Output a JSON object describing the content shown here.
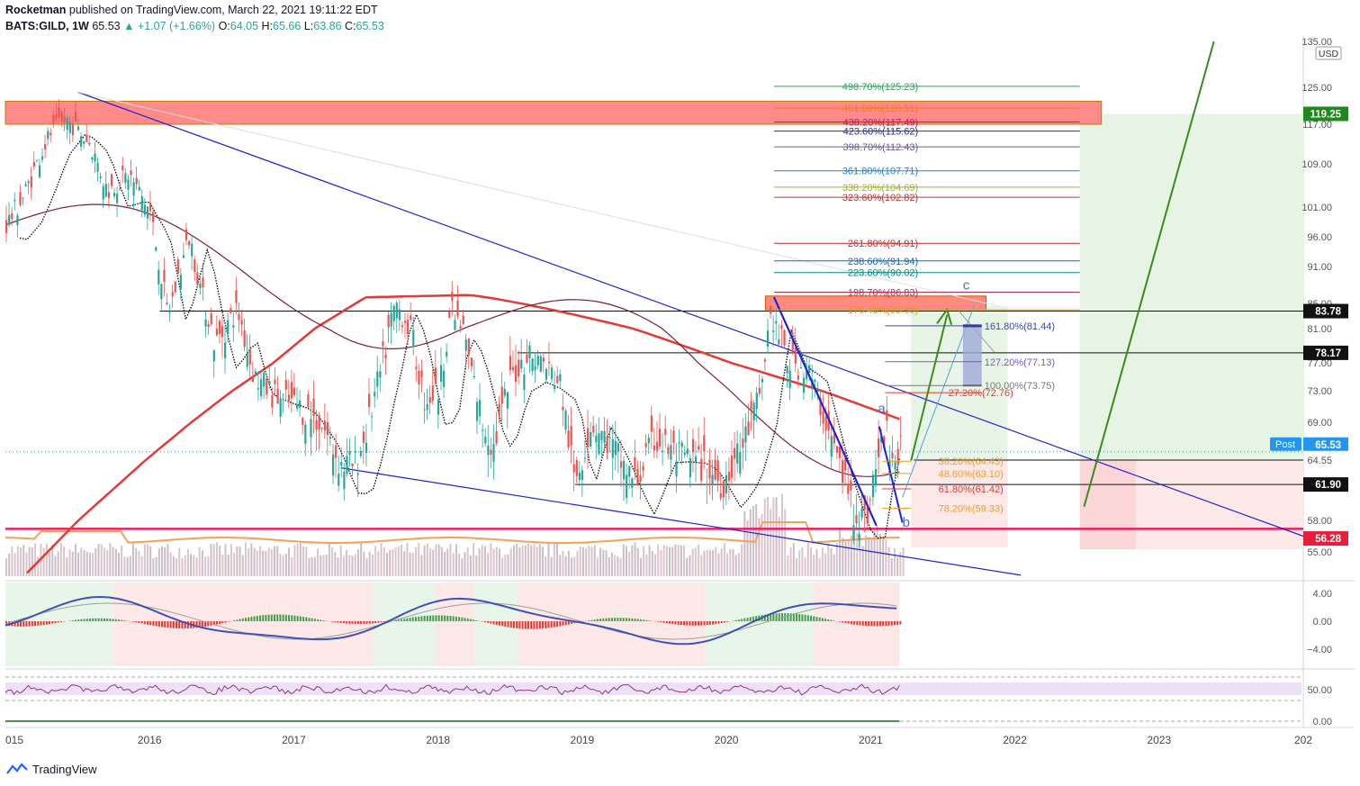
{
  "header": {
    "author": "Rocketman",
    "published_text": "published on TradingView.com, March 22, 2021 19:11:22 EDT",
    "symbol": "BATS:GILD, 1W",
    "last": "65.53",
    "change": "▲ +1.07 (+1.66%)",
    "o_label": "O:",
    "o_val": "64.05",
    "h_label": "H:",
    "h_val": "65.66",
    "l_label": "L:",
    "l_val": "63.86",
    "c_label": "C:",
    "c_val": "65.53"
  },
  "footer": {
    "brand": "TradingView"
  },
  "colors": {
    "up": "#26a69a",
    "down": "#ef5350",
    "trend": "#2222cc",
    "ma": "#e53935",
    "green_arrow": "#3a8a1e",
    "target_zone": "#e6f4e3",
    "stop_zone": "#fde8e8"
  },
  "chart_data": {
    "type": "candlestick",
    "title": "BATS:GILD, 1W",
    "currency": "USD",
    "x_labels": [
      "015",
      "2016",
      "2017",
      "2018",
      "2019",
      "2020",
      "2021",
      "2022",
      "2023",
      "202"
    ],
    "y_ticks": [
      "135.00",
      "125.00",
      "117.00",
      "109.00",
      "101.00",
      "96.00",
      "91.00",
      "85.00",
      "81.00",
      "77.00",
      "73.00",
      "69.00",
      "64.55",
      "58.00",
      "55.00"
    ],
    "ylim": [
      52,
      135
    ],
    "price_flags": [
      {
        "label": "119.25",
        "value": 119.25,
        "color": "#1b8a1b"
      },
      {
        "label": "83.78",
        "value": 83.78,
        "color": "#111111"
      },
      {
        "label": "78.17",
        "value": 78.17,
        "color": "#111111"
      },
      {
        "label": "Post",
        "value": 65.53,
        "color": "#2196f3"
      },
      {
        "label": "65.53",
        "value": 65.53,
        "color": "#2196f3"
      },
      {
        "label": "61.90",
        "value": 61.9,
        "color": "#111111"
      },
      {
        "label": "56.28",
        "value": 56.28,
        "color": "#e91e3b"
      }
    ],
    "horizontal_levels": [
      83.78,
      78.17,
      61.9,
      64.55
    ],
    "support_line": 57.2,
    "fib_extension": [
      {
        "label": "498.70%(125.23)",
        "value": 125.23,
        "color": "#26a65b"
      },
      {
        "label": "461.80%(120.51)",
        "value": 120.51,
        "color": "#e67e22"
      },
      {
        "label": "438.20%(117.49)",
        "value": 117.49,
        "color": "#c2185b"
      },
      {
        "label": "423.60%(115.62)",
        "value": 115.62,
        "color": "#2c2c8c"
      },
      {
        "label": "398.70%(112.43)",
        "value": 112.43,
        "color": "#6d5b8f"
      },
      {
        "label": "361.80%(107.71)",
        "value": 107.71,
        "color": "#2a7fc1"
      },
      {
        "label": "338.20%(104.69)",
        "value": 104.69,
        "color": "#9bb52a"
      },
      {
        "label": "323.60%(102.82)",
        "value": 102.82,
        "color": "#b33939"
      },
      {
        "label": "261.80%(94.91)",
        "value": 94.91,
        "color": "#c62828"
      },
      {
        "label": "238.60%(91.94)",
        "value": 91.94,
        "color": "#1565c0"
      },
      {
        "label": "223.60%(90.02)",
        "value": 90.02,
        "color": "#00897b"
      },
      {
        "label": "198.70%(86.83)",
        "value": 86.83,
        "color": "#b03060"
      },
      {
        "label": "176.40%(83.98)",
        "value": 83.98,
        "color": "#d4a017"
      }
    ],
    "fib_ext_2": [
      {
        "label": "161.80%(81.44)",
        "value": 81.44,
        "color": "#3949ab"
      },
      {
        "label": "127.20%(77.13)",
        "value": 77.13,
        "color": "#7e57c2"
      },
      {
        "label": "100.00%(73.75)",
        "value": 73.75,
        "color": "#777777"
      },
      {
        "label": "27.20%(72.76)",
        "value": 72.76,
        "color": "#e53935"
      }
    ],
    "fib_retrace": [
      {
        "label": "38.20%(64.43)",
        "value": 64.43,
        "color": "#f39c12"
      },
      {
        "label": "48.60%(63.10)",
        "value": 63.1,
        "color": "#f39c12"
      },
      {
        "label": "61.80%(61.42)",
        "value": 61.42,
        "color": "#e53935"
      },
      {
        "label": "78.20%(59.33)",
        "value": 59.33,
        "color": "#f39c12"
      }
    ],
    "wave_labels": [
      "a",
      "b",
      "c"
    ],
    "zones": {
      "resistance_top": 117,
      "resistance_bottom": 122,
      "small_top": 84,
      "small_bottom": 86.2,
      "target": 119.25,
      "entry": 64.55,
      "stop": 56.28
    },
    "macd_ticks": [
      "4.00",
      "0.00",
      "−4.00"
    ],
    "rsi_ticks": [
      "50.00",
      "0.00"
    ],
    "price_path": [
      [
        2015.0,
        98
      ],
      [
        2015.12,
        103
      ],
      [
        2015.3,
        115
      ],
      [
        2015.42,
        118
      ],
      [
        2015.58,
        113
      ],
      [
        2015.7,
        104
      ],
      [
        2015.85,
        107
      ],
      [
        2016.0,
        100
      ],
      [
        2016.12,
        83
      ],
      [
        2016.27,
        96
      ],
      [
        2016.36,
        86
      ],
      [
        2016.45,
        79
      ],
      [
        2016.6,
        84
      ],
      [
        2016.72,
        75
      ],
      [
        2016.88,
        72
      ],
      [
        2017.02,
        71
      ],
      [
        2017.18,
        69
      ],
      [
        2017.32,
        64
      ],
      [
        2017.42,
        64
      ],
      [
        2017.5,
        68
      ],
      [
        2017.6,
        76
      ],
      [
        2017.7,
        85
      ],
      [
        2017.8,
        81
      ],
      [
        2017.9,
        72
      ],
      [
        2018.0,
        73
      ],
      [
        2018.08,
        84
      ],
      [
        2018.18,
        80
      ],
      [
        2018.3,
        69
      ],
      [
        2018.38,
        66
      ],
      [
        2018.5,
        75
      ],
      [
        2018.62,
        78
      ],
      [
        2018.72,
        77
      ],
      [
        2018.84,
        74
      ],
      [
        2018.94,
        62
      ],
      [
        2019.06,
        69
      ],
      [
        2019.2,
        66
      ],
      [
        2019.36,
        62
      ],
      [
        2019.5,
        67
      ],
      [
        2019.66,
        65
      ],
      [
        2019.82,
        64
      ],
      [
        2019.96,
        62
      ],
      [
        2020.1,
        66
      ],
      [
        2020.22,
        72
      ],
      [
        2020.3,
        83
      ],
      [
        2020.42,
        77
      ],
      [
        2020.56,
        76
      ],
      [
        2020.7,
        68
      ],
      [
        2020.8,
        63
      ],
      [
        2020.88,
        59
      ],
      [
        2020.96,
        58
      ],
      [
        2021.02,
        63
      ],
      [
        2021.1,
        68
      ],
      [
        2021.16,
        64
      ],
      [
        2021.2,
        65.5
      ]
    ]
  }
}
